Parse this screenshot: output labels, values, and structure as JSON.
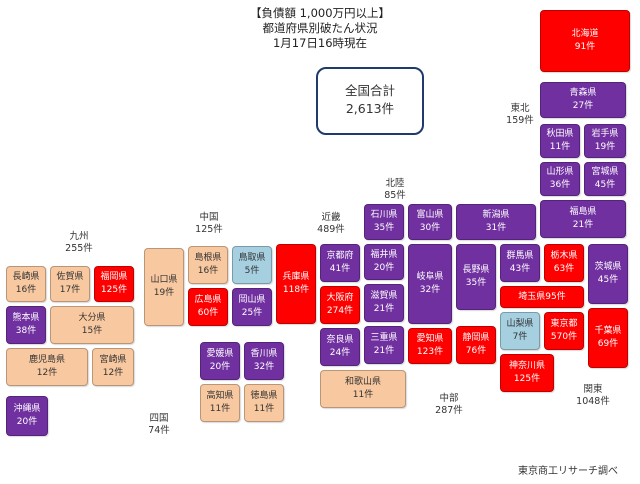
{
  "title": {
    "line1": "【負債額 1,000万円以上】",
    "line2": "都道府県別破たん状況",
    "line3": "1月17日16時現在"
  },
  "total": {
    "label": "全国合計",
    "value": "2,613件"
  },
  "colors": {
    "purple": "#7030a0",
    "red": "#ff0000",
    "peach": "#f8c8a0",
    "blue": "#a6cfe0",
    "border": "#1f3a6b"
  },
  "regions": {
    "tohoku": {
      "name": "東北",
      "count": "159件"
    },
    "hokuriku": {
      "name": "北陸",
      "count": "85件"
    },
    "chugoku": {
      "name": "中国",
      "count": "125件"
    },
    "kinki": {
      "name": "近畿",
      "count": "489件"
    },
    "kyushu": {
      "name": "九州",
      "count": "255件"
    },
    "shikoku": {
      "name": "四国",
      "count": "74件"
    },
    "chubu": {
      "name": "中部",
      "count": "287件"
    },
    "kanto": {
      "name": "関東",
      "count": "1048件"
    }
  },
  "prefectures": {
    "hokkaido": {
      "name": "北海道",
      "count": "91件"
    },
    "aomori": {
      "name": "青森県",
      "count": "27件"
    },
    "akita": {
      "name": "秋田県",
      "count": "11件"
    },
    "iwate": {
      "name": "岩手県",
      "count": "19件"
    },
    "yamagata": {
      "name": "山形県",
      "count": "36件"
    },
    "miyagi": {
      "name": "宮城県",
      "count": "45件"
    },
    "fukushima": {
      "name": "福島県",
      "count": "21件"
    },
    "niigata": {
      "name": "新潟県",
      "count": "31件"
    },
    "ishikawa": {
      "name": "石川県",
      "count": "35件"
    },
    "toyama": {
      "name": "富山県",
      "count": "30件"
    },
    "fukui": {
      "name": "福井県",
      "count": "20件"
    },
    "gifu": {
      "name": "岐阜県",
      "count": "32件"
    },
    "nagano": {
      "name": "長野県",
      "count": "35件"
    },
    "gunma": {
      "name": "群馬県",
      "count": "43件"
    },
    "tochigi": {
      "name": "栃木県",
      "count": "63件"
    },
    "ibaraki": {
      "name": "茨城県",
      "count": "45件"
    },
    "saitama": {
      "name": "埼玉県",
      "count": "95件"
    },
    "yamanashi": {
      "name": "山梨県",
      "count": "7件"
    },
    "tokyo": {
      "name": "東京都",
      "count": "570件"
    },
    "chiba": {
      "name": "千葉県",
      "count": "69件"
    },
    "kanagawa": {
      "name": "神奈川県",
      "count": "125件"
    },
    "shizuoka": {
      "name": "静岡県",
      "count": "76件"
    },
    "aichi": {
      "name": "愛知県",
      "count": "123件"
    },
    "mie": {
      "name": "三重県",
      "count": "21件"
    },
    "shiga": {
      "name": "滋賀県",
      "count": "21件"
    },
    "kyoto": {
      "name": "京都府",
      "count": "41件"
    },
    "osaka": {
      "name": "大阪府",
      "count": "274件"
    },
    "hyogo": {
      "name": "兵庫県",
      "count": "118件"
    },
    "nara": {
      "name": "奈良県",
      "count": "24件"
    },
    "wakayama": {
      "name": "和歌山県",
      "count": "11件"
    },
    "tottori": {
      "name": "鳥取県",
      "count": "5件"
    },
    "shimane": {
      "name": "島根県",
      "count": "16件"
    },
    "okayama": {
      "name": "岡山県",
      "count": "25件"
    },
    "hiroshima": {
      "name": "広島県",
      "count": "60件"
    },
    "yamaguchi": {
      "name": "山口県",
      "count": "19件"
    },
    "ehime": {
      "name": "愛媛県",
      "count": "20件"
    },
    "kagawa": {
      "name": "香川県",
      "count": "32件"
    },
    "kochi": {
      "name": "高知県",
      "count": "11件"
    },
    "tokushima": {
      "name": "徳島県",
      "count": "11件"
    },
    "fukuoka": {
      "name": "福岡県",
      "count": "125件"
    },
    "saga": {
      "name": "佐賀県",
      "count": "17件"
    },
    "nagasaki": {
      "name": "長崎県",
      "count": "16件"
    },
    "kumamoto": {
      "name": "熊本県",
      "count": "38件"
    },
    "oita": {
      "name": "大分県",
      "count": "15件"
    },
    "miyazaki": {
      "name": "宮崎県",
      "count": "12件"
    },
    "kagoshima": {
      "name": "鹿児島県",
      "count": "12件"
    },
    "okinawa": {
      "name": "沖縄県",
      "count": "20件"
    }
  },
  "source": "東京商工リサーチ調べ"
}
